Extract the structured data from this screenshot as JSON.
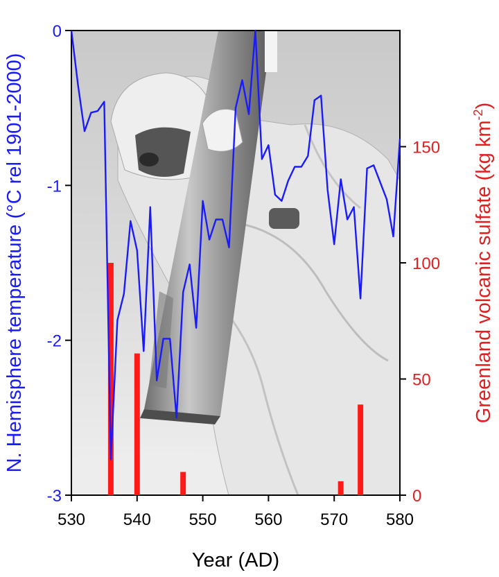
{
  "chart_data": {
    "type": "line",
    "xlabel": "Year (AD)",
    "xlim": [
      530,
      580
    ],
    "x_ticks": [
      530,
      540,
      550,
      560,
      570,
      580
    ],
    "y_left": {
      "label": "N. Hemisphere temperature (°C rel 1901-2000)",
      "lim": [
        -3,
        0
      ],
      "ticks": [
        0,
        -1,
        -2,
        -3
      ],
      "color": "#1a1aff"
    },
    "y_right": {
      "label_main": "Greenland volcanic sulfate (kg km",
      "label_sup": "-2",
      "label_end": ")",
      "lim": [
        0,
        200
      ],
      "ticks": [
        0,
        50,
        100,
        150
      ],
      "color": "#e02020"
    },
    "series": [
      {
        "axis": "left",
        "type": "line",
        "color": "#1a1aff",
        "x": [
          530,
          531,
          532,
          533,
          534,
          535,
          536,
          537,
          538,
          539,
          540,
          541,
          542,
          543,
          544,
          545,
          546,
          547,
          548,
          549,
          550,
          551,
          552,
          553,
          554,
          555,
          556,
          557,
          558,
          559,
          560,
          561,
          562,
          563,
          564,
          565,
          566,
          567,
          568,
          569,
          570,
          571,
          572,
          573,
          574,
          575,
          576,
          577,
          578,
          579,
          580
        ],
        "y": [
          0.0,
          -0.35,
          -0.65,
          -0.53,
          -0.52,
          -0.46,
          -2.77,
          -1.87,
          -1.7,
          -1.23,
          -1.42,
          -2.07,
          -1.14,
          -2.26,
          -1.99,
          -1.99,
          -2.5,
          -1.69,
          -1.51,
          -1.92,
          -1.1,
          -1.35,
          -1.22,
          -1.22,
          -1.4,
          -0.5,
          -0.32,
          -0.54,
          0.0,
          -0.83,
          -0.74,
          -1.06,
          -1.1,
          -0.97,
          -0.88,
          -0.88,
          -0.81,
          -0.45,
          -0.42,
          -1.03,
          -1.38,
          -0.96,
          -1.22,
          -1.14,
          -1.73,
          -0.89,
          -0.87,
          -0.98,
          -1.09,
          -1.33,
          -0.7
        ]
      },
      {
        "axis": "right",
        "type": "bar",
        "color": "#ff1a1a",
        "x": [
          536,
          540,
          547,
          571,
          574
        ],
        "values": [
          100,
          61,
          10,
          6,
          39
        ]
      }
    ]
  }
}
